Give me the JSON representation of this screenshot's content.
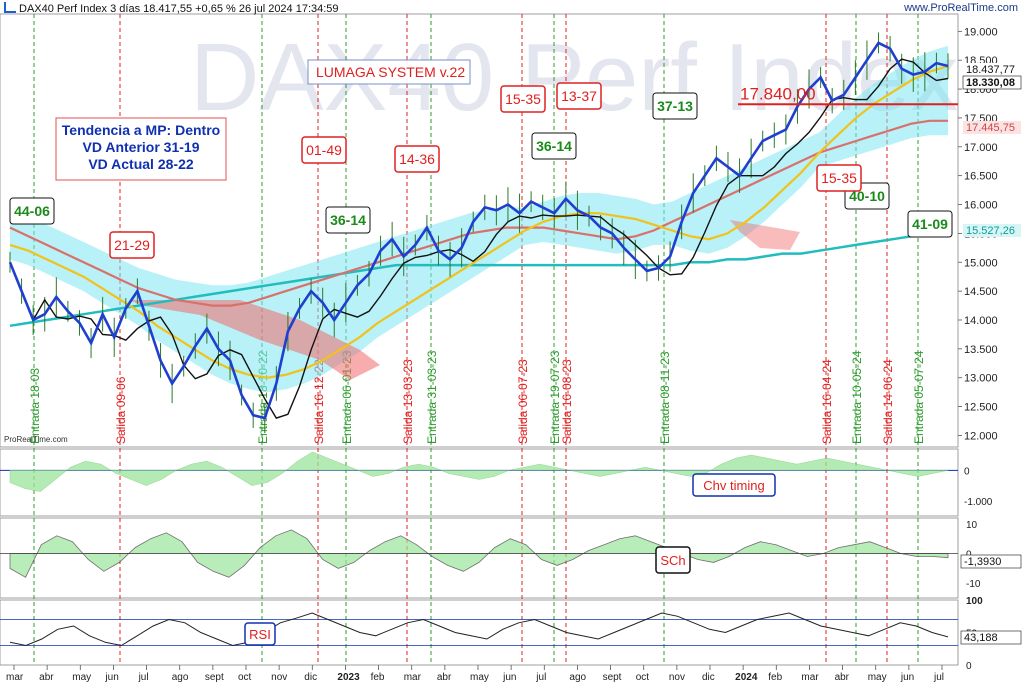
{
  "header": {
    "title": "DAX40 Perf Index 3 días 18.417,55 +0,65 % 26 jul 2024 17:34:59",
    "source": "www.ProRealTime.com"
  },
  "watermark": "DAX40 Perf Index",
  "credit": "ProRealTime.com",
  "annotations": {
    "system": "LUMAGA SYSTEM v.22",
    "trend": [
      "Tendencia a MP: Dentro",
      "VD Anterior 31-19",
      "VD Actual 28-22"
    ],
    "level_label": "17.840,00",
    "boxes_green": [
      "44-06",
      "36-14",
      "36-14",
      "37-13",
      "40-10",
      "41-09"
    ],
    "boxes_red": [
      "21-29",
      "01-49",
      "14-36",
      "15-35",
      "13-37",
      "15-35"
    ],
    "signals": [
      "Entrada 18-03",
      "Salida 09-06",
      "Entrada 18-10-22",
      "Salida 16-12-22",
      "Entrada 06-01-23",
      "Salida 13-03-23",
      "Entrada 31-03-23",
      "Salida 06-07-23",
      "Entrada 19-07-23",
      "Salida 16-08-23",
      "Entrada 08-11-23",
      "Salida 16-04-24",
      "Entrada 10-05-24",
      "Salida 14-06-24",
      "Entrada 05-07-24"
    ],
    "panel_labels": [
      "Chv timing",
      "SCh",
      "RSI"
    ]
  },
  "colors": {
    "price_line": "#1f3fd1",
    "ma_fast": "#f2c21a",
    "ma_slow": "#d9706b",
    "ma_long": "#21bdbd",
    "kijun": "#111111",
    "cloud": "#7de6f2",
    "cloud_bear": "#f06a6a",
    "entry": "#2e9c2e",
    "exit": "#e02020"
  },
  "chart_data": [
    {
      "type": "line",
      "title": "DAX40 Perf Index 3 días",
      "x_ticks": [
        "mar",
        "abr",
        "may",
        "jun",
        "jul",
        "ago",
        "sept",
        "oct",
        "nov",
        "dic",
        "2023",
        "feb",
        "mar",
        "abr",
        "may",
        "jun",
        "jul",
        "ago",
        "sept",
        "oct",
        "nov",
        "dic",
        "2024",
        "feb",
        "mar",
        "abr",
        "may",
        "jun",
        "jul"
      ],
      "y_ticks": [
        "19.000",
        "18.500",
        "18.000",
        "17.500",
        "17.000",
        "16.500",
        "16.000",
        "15.500",
        "15.000",
        "14.500",
        "14.000",
        "13.500",
        "13.000",
        "12.500",
        "12.000"
      ],
      "ylim": [
        11800,
        19300
      ],
      "right_labels": [
        "18.437,77",
        "18.330,08",
        "17.445,75",
        "15.527,26"
      ],
      "series": [
        {
          "name": "price",
          "values": [
            15000,
            14500,
            14000,
            14100,
            14400,
            14150,
            13950,
            13600,
            14100,
            13700,
            14200,
            14500,
            13900,
            13300,
            12900,
            13200,
            13550,
            13850,
            13500,
            13300,
            12700,
            12350,
            12300,
            12900,
            13800,
            14200,
            14500,
            14300,
            14000,
            14300,
            14600,
            14800,
            15200,
            15400,
            15100,
            15300,
            15600,
            15200,
            15050,
            15250,
            15700,
            15950,
            15900,
            16000,
            15850,
            16050,
            15950,
            15850,
            16100,
            15900,
            15800,
            15600,
            15500,
            15250,
            15050,
            14850,
            14900,
            15100,
            15700,
            16200,
            16500,
            16800,
            16650,
            16500,
            16800,
            17100,
            17200,
            17300,
            17700,
            18000,
            18200,
            17800,
            17900,
            18200,
            18500,
            18800,
            18700,
            18350,
            18250,
            18300,
            18450,
            18400
          ]
        },
        {
          "name": "",
          "values": [
            15300,
            15200,
            15050,
            14900,
            14750,
            14550,
            14350,
            14150,
            13900,
            13700,
            13500,
            13300,
            13150,
            13050,
            13000,
            13050,
            13150,
            13300,
            13500,
            13700,
            13950,
            14150,
            14350,
            14550,
            14750,
            14950,
            15150,
            15350,
            15550,
            15700,
            15800,
            15850,
            15850,
            15800,
            15750,
            15650,
            15550,
            15450,
            15400,
            15500,
            15700,
            15950,
            16250,
            16550,
            16900,
            17200,
            17500,
            17750,
            17950,
            18150,
            18300,
            18400
          ]
        },
        {
          "name": "",
          "values": [
            15600,
            15450,
            15300,
            15150,
            15000,
            14850,
            14700,
            14550,
            14450,
            14350,
            14300,
            14250,
            14250,
            14300,
            14400,
            14500,
            14600,
            14700,
            14800,
            14900,
            15000,
            15100,
            15200,
            15300,
            15400,
            15500,
            15550,
            15600,
            15600,
            15600,
            15550,
            15500,
            15450,
            15400,
            15450,
            15550,
            15700,
            15850,
            16000,
            16150,
            16300,
            16450,
            16600,
            16750,
            16900,
            17000,
            17100,
            17200,
            17300,
            17400,
            17450,
            17450
          ]
        },
        {
          "name": "",
          "values": [
            13900,
            13950,
            14000,
            14050,
            14100,
            14150,
            14200,
            14250,
            14300,
            14350,
            14400,
            14450,
            14500,
            14550,
            14600,
            14650,
            14700,
            14750,
            14800,
            14850,
            14900,
            14950,
            14950,
            14950,
            14950,
            14950,
            14950,
            14950,
            14950,
            14950,
            14950,
            14950,
            14950,
            14950,
            14950,
            14950,
            14950,
            15000,
            15000,
            15050,
            15050,
            15100,
            15150,
            15150,
            15200,
            15250,
            15300,
            15350,
            15400,
            15450,
            15500,
            15530
          ]
        }
      ]
    },
    {
      "type": "area",
      "title": "Chv timing",
      "y_ticks": [
        "0",
        "-1.000"
      ],
      "ylim": [
        -1500,
        700
      ],
      "values": [
        -400,
        -600,
        -700,
        -300,
        100,
        300,
        200,
        -100,
        -300,
        -500,
        -300,
        0,
        200,
        300,
        100,
        -200,
        -500,
        -400,
        -100,
        300,
        600,
        400,
        200,
        0,
        -200,
        -100,
        100,
        200,
        100,
        -100,
        -200,
        -300,
        -200,
        0,
        100,
        200,
        100,
        0,
        -100,
        -200,
        -100,
        0,
        100,
        0,
        -100,
        -200,
        -100,
        200,
        400,
        500,
        400,
        300,
        200,
        300,
        400,
        300,
        200,
        100,
        0,
        -100,
        -200,
        -100,
        0
      ]
    },
    {
      "type": "area",
      "title": "SCh",
      "y_ticks": [
        "10",
        "0",
        "-10"
      ],
      "ylim": [
        -15,
        12
      ],
      "values": [
        -5,
        -8,
        3,
        6,
        4,
        -2,
        -6,
        -3,
        2,
        5,
        7,
        4,
        -3,
        -6,
        -8,
        -4,
        2,
        6,
        8,
        5,
        -2,
        -5,
        -3,
        1,
        4,
        6,
        3,
        -1,
        -4,
        -6,
        -3,
        2,
        5,
        3,
        -2,
        -4,
        -2,
        1,
        3,
        5,
        6,
        4,
        2,
        0,
        -2,
        -3,
        -1,
        2,
        4,
        3,
        1,
        -1,
        0,
        2,
        3,
        4,
        2,
        0,
        -1,
        -1,
        -1.393
      ]
    },
    {
      "type": "line",
      "title": "RSI",
      "y_ticks": [
        "100",
        "50",
        "0"
      ],
      "ylim": [
        0,
        100
      ],
      "values": [
        35,
        30,
        40,
        55,
        60,
        45,
        35,
        30,
        45,
        60,
        70,
        65,
        50,
        40,
        30,
        35,
        50,
        65,
        72,
        80,
        70,
        60,
        50,
        45,
        55,
        65,
        70,
        60,
        50,
        45,
        40,
        55,
        65,
        70,
        60,
        50,
        45,
        40,
        50,
        60,
        70,
        80,
        75,
        65,
        55,
        50,
        60,
        70,
        75,
        80,
        70,
        60,
        55,
        50,
        45,
        55,
        65,
        60,
        50,
        43.188
      ]
    }
  ]
}
